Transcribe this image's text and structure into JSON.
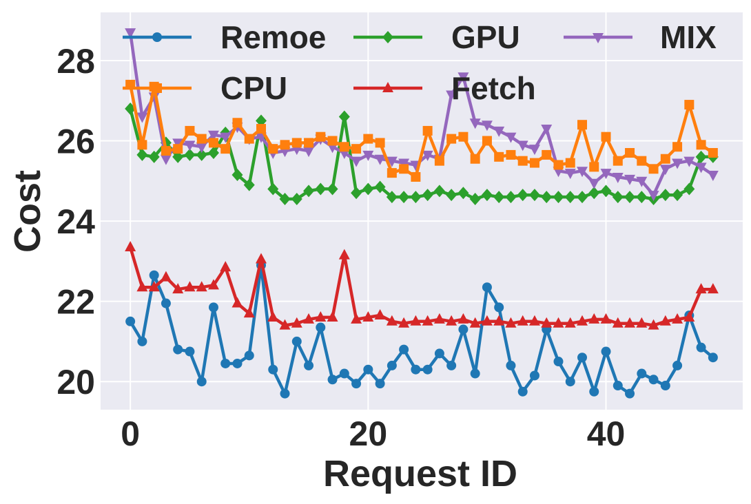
{
  "chart_data": {
    "type": "line",
    "title": "",
    "xlabel": "Request ID",
    "ylabel": "Cost",
    "xlim": [
      -2.5,
      51.5
    ],
    "ylim": [
      19.3,
      29.2
    ],
    "xticks": [
      0,
      20,
      40
    ],
    "xtick_labels": [
      "0",
      "20",
      "40"
    ],
    "yticks": [
      20,
      22,
      24,
      26,
      28
    ],
    "ytick_labels": [
      "20",
      "22",
      "24",
      "26",
      "28"
    ],
    "grid": true,
    "legend_position": "top",
    "x": [
      0,
      1,
      2,
      3,
      4,
      5,
      6,
      7,
      8,
      9,
      10,
      11,
      12,
      13,
      14,
      15,
      16,
      17,
      18,
      19,
      20,
      21,
      22,
      23,
      24,
      25,
      26,
      27,
      28,
      29,
      30,
      31,
      32,
      33,
      34,
      35,
      36,
      37,
      38,
      39,
      40,
      41,
      42,
      43,
      44,
      45,
      46,
      47,
      48,
      49
    ],
    "series": [
      {
        "name": "Remoe",
        "color": "#1f77b4",
        "marker": "circle",
        "values": [
          21.5,
          21.0,
          22.65,
          21.95,
          20.8,
          20.75,
          20.0,
          21.85,
          20.45,
          20.45,
          20.65,
          22.9,
          20.3,
          19.7,
          21.0,
          20.4,
          21.35,
          20.05,
          20.2,
          19.95,
          20.3,
          19.95,
          20.4,
          20.8,
          20.3,
          20.3,
          20.7,
          20.4,
          21.3,
          20.2,
          22.35,
          21.85,
          20.4,
          19.75,
          20.15,
          21.3,
          20.5,
          20.0,
          20.6,
          19.75,
          20.75,
          19.9,
          19.7,
          20.2,
          20.05,
          19.9,
          20.4,
          21.65,
          20.85,
          20.6
        ]
      },
      {
        "name": "GPU",
        "color": "#2ca02c",
        "marker": "diamond",
        "values": [
          26.8,
          25.65,
          25.6,
          25.95,
          25.6,
          25.65,
          25.65,
          25.7,
          26.2,
          25.15,
          24.9,
          26.5,
          24.8,
          24.55,
          24.55,
          24.75,
          24.8,
          24.8,
          26.6,
          24.7,
          24.8,
          24.85,
          24.6,
          24.6,
          24.6,
          24.65,
          24.75,
          24.65,
          24.7,
          24.55,
          24.65,
          24.6,
          24.6,
          24.65,
          24.65,
          24.6,
          24.6,
          24.6,
          24.6,
          24.7,
          24.75,
          24.6,
          24.6,
          24.6,
          24.55,
          24.65,
          24.65,
          24.8,
          25.6,
          25.6
        ]
      },
      {
        "name": "MIX",
        "color": "#9467bd",
        "marker": "triangle-down",
        "values": [
          28.7,
          26.6,
          27.1,
          25.55,
          25.95,
          25.9,
          25.85,
          26.15,
          26.1,
          26.35,
          26.05,
          26.1,
          25.7,
          25.75,
          25.8,
          25.75,
          26.05,
          25.85,
          25.7,
          25.5,
          25.65,
          25.55,
          25.5,
          25.45,
          25.4,
          25.65,
          25.55,
          27.15,
          27.6,
          26.45,
          26.4,
          26.25,
          26.1,
          25.9,
          25.8,
          26.3,
          25.25,
          25.2,
          25.25,
          24.95,
          25.2,
          25.1,
          25.05,
          25.0,
          24.65,
          25.3,
          25.45,
          25.5,
          25.35,
          25.15
        ]
      },
      {
        "name": "CPU",
        "color": "#ff7f0e",
        "marker": "square",
        "values": [
          27.4,
          25.9,
          27.35,
          25.75,
          25.8,
          26.25,
          26.05,
          25.95,
          25.8,
          26.45,
          26.05,
          26.3,
          25.8,
          25.9,
          25.95,
          25.95,
          26.1,
          26.0,
          25.85,
          25.8,
          26.05,
          25.95,
          25.2,
          25.3,
          25.1,
          26.25,
          25.5,
          26.05,
          26.1,
          25.55,
          26.0,
          25.6,
          25.65,
          25.5,
          25.45,
          25.65,
          25.4,
          25.45,
          26.4,
          25.35,
          26.1,
          25.5,
          25.7,
          25.5,
          25.3,
          25.55,
          25.85,
          26.9,
          25.9,
          25.7
        ]
      },
      {
        "name": "Fetch",
        "color": "#d62728",
        "marker": "triangle-up",
        "values": [
          23.35,
          22.35,
          22.35,
          22.6,
          22.3,
          22.35,
          22.35,
          22.4,
          22.85,
          21.95,
          21.7,
          23.05,
          21.6,
          21.4,
          21.45,
          21.55,
          21.6,
          21.6,
          23.15,
          21.55,
          21.6,
          21.65,
          21.5,
          21.45,
          21.5,
          21.5,
          21.55,
          21.5,
          21.55,
          21.45,
          21.5,
          21.5,
          21.45,
          21.5,
          21.5,
          21.45,
          21.45,
          21.45,
          21.5,
          21.55,
          21.55,
          21.45,
          21.45,
          21.45,
          21.4,
          21.5,
          21.55,
          21.6,
          22.3,
          22.3
        ]
      }
    ]
  }
}
